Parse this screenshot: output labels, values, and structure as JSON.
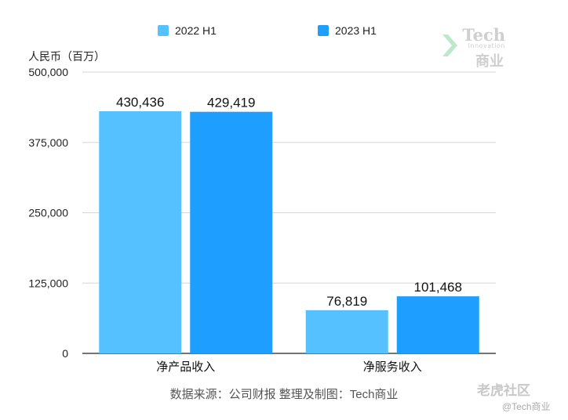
{
  "chart_data": {
    "type": "bar",
    "categories": [
      "净产品收入",
      "净服务收入"
    ],
    "series": [
      {
        "name": "2022 H1",
        "values": [
          430436,
          76819
        ],
        "labels": [
          "430,436",
          "76,819"
        ],
        "color": "#56c1ff"
      },
      {
        "name": "2023 H1",
        "values": [
          429419,
          101468
        ],
        "labels": [
          "429,419",
          "101,468"
        ],
        "color": "#1e9fff"
      }
    ],
    "ylabel": "人民币（百万）",
    "ylim": [
      0,
      500000
    ],
    "yticks": [
      0,
      125000,
      250000,
      375000,
      500000
    ],
    "ytick_labels": [
      "0",
      "125,000",
      "250,000",
      "375,000",
      "500,000"
    ],
    "grid": true,
    "legend": "top",
    "source": "数据来源：公司财报 整理及制图：Tech商业"
  },
  "watermark": {
    "tech": "Tech",
    "innovation": "Innovation",
    "cn": "商业",
    "tiger": "老虎社区",
    "user": "@Tech商业"
  }
}
